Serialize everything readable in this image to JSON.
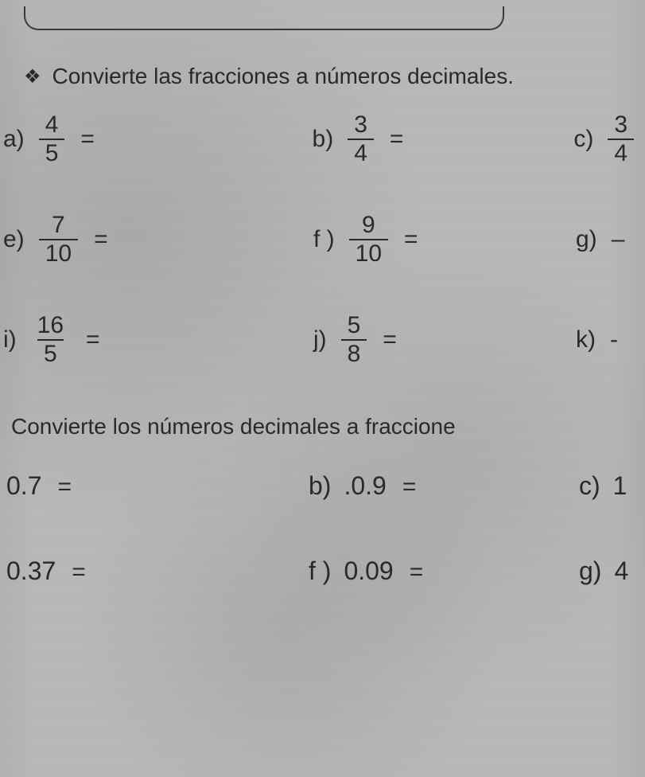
{
  "section1": {
    "title": "Convierte las fracciones a números decimales.",
    "bullet": "❖",
    "rows": [
      {
        "a": {
          "label": "a)",
          "num": "4",
          "den": "5"
        },
        "b": {
          "label": "b)",
          "num": "3",
          "den": "4"
        },
        "c": {
          "label": "c)",
          "num": "3",
          "den": "4",
          "partial": true
        }
      },
      {
        "a": {
          "label": "e)",
          "num": "7",
          "den": "10"
        },
        "b": {
          "label": "f )",
          "num": "9",
          "den": "10"
        },
        "c": {
          "label": "g)",
          "dash": "–"
        }
      },
      {
        "a": {
          "label": "i)",
          "num": "16",
          "den": "5"
        },
        "b": {
          "label": "j)",
          "num": "5",
          "den": "8"
        },
        "c": {
          "label": "k)",
          "dash": "-"
        }
      }
    ],
    "eq": "="
  },
  "section2": {
    "title": "Convierte los números decimales a fraccione",
    "rows": [
      {
        "a": {
          "val": "0.7"
        },
        "b": {
          "label": "b)",
          "val": ".0.9"
        },
        "c": {
          "label": "c)",
          "val": "1"
        }
      },
      {
        "a": {
          "val": "0.37"
        },
        "b": {
          "label": "f )",
          "val": "0.09"
        },
        "c": {
          "label": "g)",
          "val": "4"
        }
      }
    ],
    "eq": "="
  },
  "colors": {
    "text": "#2a2a2a",
    "background": "#b8b8b6"
  }
}
